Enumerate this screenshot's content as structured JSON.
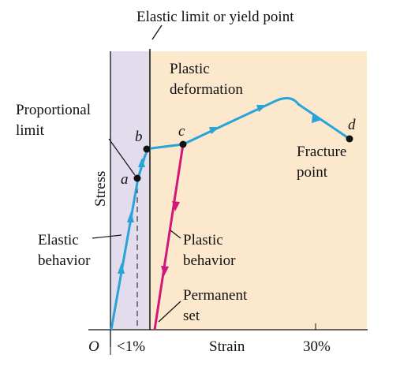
{
  "header": {
    "title": "Elastic limit or yield point"
  },
  "axes": {
    "y_label": "Stress",
    "x_label": "Strain",
    "origin": "O",
    "x_tick_small": "<1%",
    "x_tick_large": "30%"
  },
  "points": {
    "a": "a",
    "b": "b",
    "c": "c",
    "d": "d"
  },
  "labels": {
    "proportional_limit": [
      "Proportional",
      "limit"
    ],
    "plastic_deformation": [
      "Plastic",
      "deformation"
    ],
    "fracture_point": [
      "Fracture",
      "point"
    ],
    "elastic_behavior": [
      "Elastic",
      "behavior"
    ],
    "plastic_behavior": [
      "Plastic",
      "behavior"
    ],
    "permanent_set": [
      "Permanent",
      "set"
    ]
  }
}
